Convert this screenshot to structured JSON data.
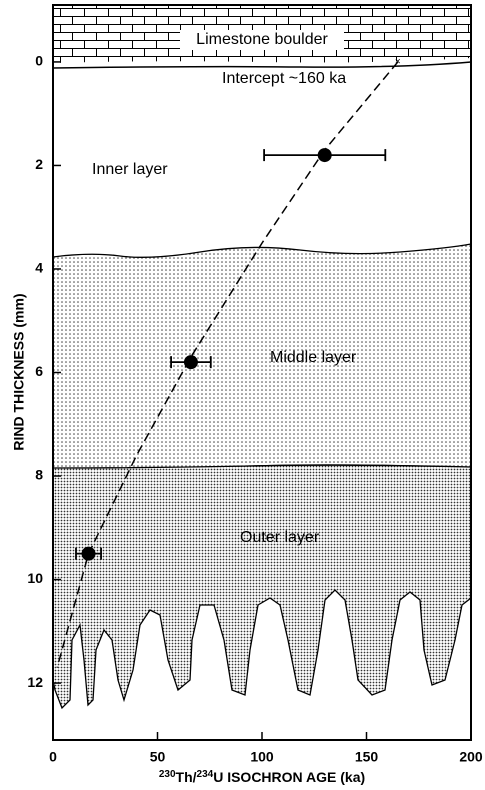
{
  "chart_data": {
    "type": "scatter",
    "x_label": [
      "230",
      "Th/",
      "234",
      "U ISOCHRON AGE (ka)"
    ],
    "y_label": "RIND THICKNESS (mm)",
    "xlim": [
      0,
      200
    ],
    "ylim": [
      13.1,
      -1.1
    ],
    "xticks": [
      0,
      50,
      100,
      150,
      200
    ],
    "yticks": [
      0,
      2,
      4,
      6,
      8,
      10,
      12
    ],
    "series": [
      {
        "color": "#000000",
        "x": [
          130,
          66,
          17
        ],
        "values": [
          1.8,
          5.8,
          9.5
        ],
        "xerr": [
          29,
          9.5,
          6
        ]
      }
    ],
    "curve": {
      "style": "dashed",
      "color": "#000000",
      "x": [
        165,
        130,
        100,
        66,
        40,
        17,
        2
      ],
      "values": [
        0,
        1.7,
        3.5,
        5.7,
        7.6,
        9.5,
        11.7
      ]
    },
    "annotations": [
      "Limestone boulder",
      "Intercept ~160 ka",
      "Inner layer",
      "Middle layer",
      "Outer layer"
    ]
  }
}
